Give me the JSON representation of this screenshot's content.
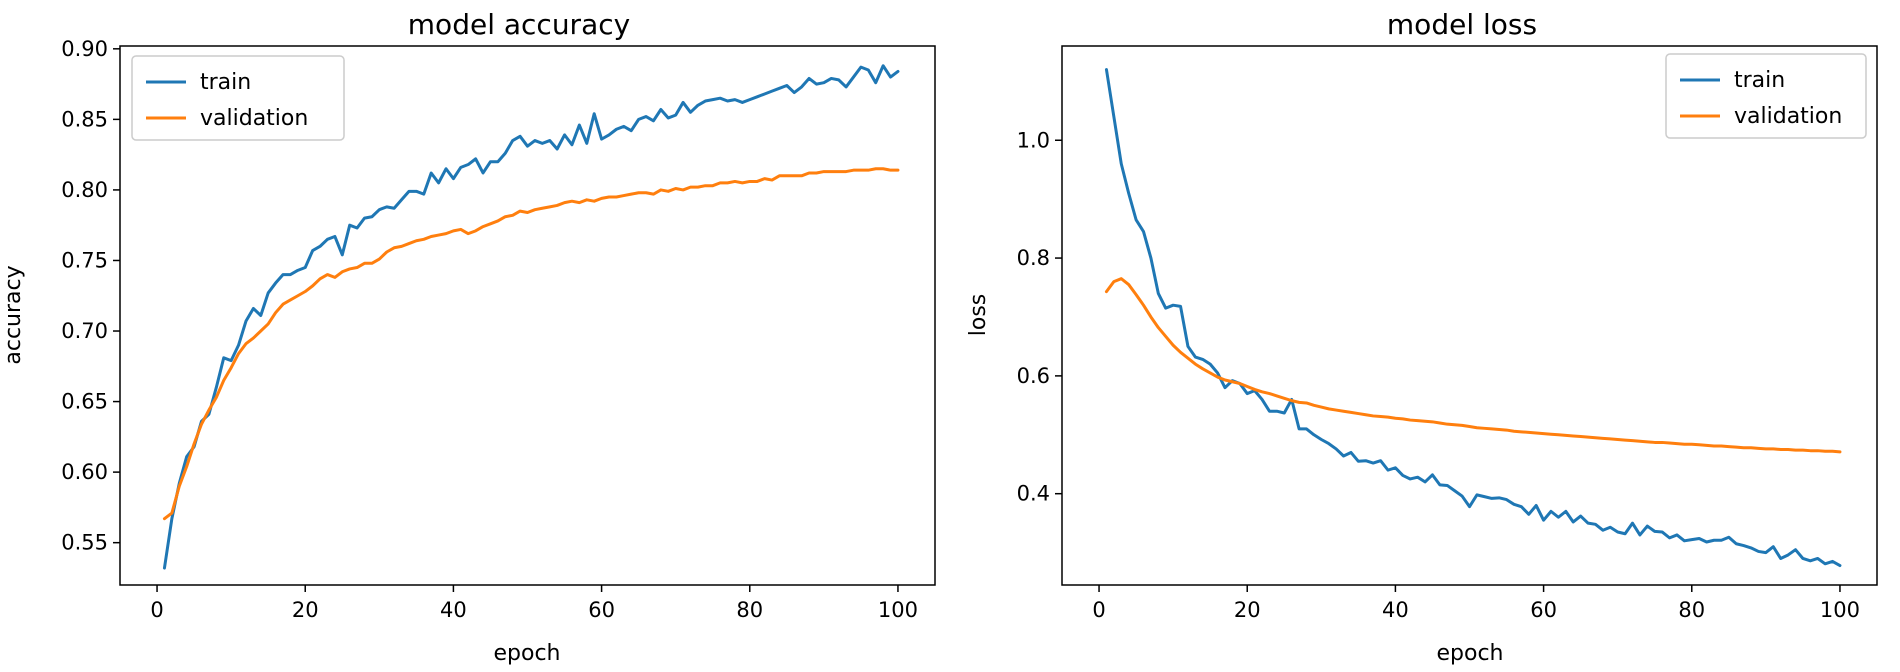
{
  "chart_data": [
    {
      "type": "line",
      "title": "model accuracy",
      "xlabel": "epoch",
      "ylabel": "accuracy",
      "xlim": [
        -5,
        105
      ],
      "ylim": [
        0.52,
        0.902
      ],
      "xticks": [
        0,
        20,
        40,
        60,
        80,
        100
      ],
      "xtick_labels": [
        "0",
        "20",
        "40",
        "60",
        "80",
        "100"
      ],
      "yticks": [
        0.55,
        0.6,
        0.65,
        0.7,
        0.75,
        0.8,
        0.85,
        0.9
      ],
      "ytick_labels": [
        "0.55",
        "0.60",
        "0.65",
        "0.70",
        "0.75",
        "0.80",
        "0.85",
        "0.90"
      ],
      "grid": false,
      "legend_position": "top-left",
      "x": [
        1,
        2,
        3,
        4,
        5,
        6,
        7,
        8,
        9,
        10,
        11,
        12,
        13,
        14,
        15,
        16,
        17,
        18,
        19,
        20,
        21,
        22,
        23,
        24,
        25,
        26,
        27,
        28,
        29,
        30,
        31,
        32,
        33,
        34,
        35,
        36,
        37,
        38,
        39,
        40,
        41,
        42,
        43,
        44,
        45,
        46,
        47,
        48,
        49,
        50,
        51,
        52,
        53,
        54,
        55,
        56,
        57,
        58,
        59,
        60,
        61,
        62,
        63,
        64,
        65,
        66,
        67,
        68,
        69,
        70,
        71,
        72,
        73,
        74,
        75,
        76,
        77,
        78,
        79,
        80,
        81,
        82,
        83,
        84,
        85,
        86,
        87,
        88,
        89,
        90,
        91,
        92,
        93,
        94,
        95,
        96,
        97,
        98,
        99,
        100
      ],
      "series": [
        {
          "name": "train",
          "color": "#1f77b4",
          "values": [
            0.532,
            0.567,
            0.592,
            0.611,
            0.618,
            0.636,
            0.641,
            0.66,
            0.681,
            0.679,
            0.69,
            0.707,
            0.716,
            0.711,
            0.727,
            0.734,
            0.74,
            0.74,
            0.743,
            0.745,
            0.757,
            0.76,
            0.765,
            0.767,
            0.754,
            0.775,
            0.773,
            0.78,
            0.781,
            0.786,
            0.788,
            0.787,
            0.793,
            0.799,
            0.799,
            0.797,
            0.812,
            0.805,
            0.815,
            0.808,
            0.816,
            0.818,
            0.822,
            0.812,
            0.82,
            0.82,
            0.826,
            0.835,
            0.838,
            0.831,
            0.835,
            0.833,
            0.835,
            0.829,
            0.839,
            0.832,
            0.846,
            0.833,
            0.854,
            0.836,
            0.839,
            0.843,
            0.845,
            0.842,
            0.85,
            0.852,
            0.849,
            0.857,
            0.851,
            0.853,
            0.862,
            0.855,
            0.86,
            0.863,
            0.864,
            0.865,
            0.863,
            0.864,
            0.862,
            0.864,
            0.866,
            0.868,
            0.87,
            0.872,
            0.874,
            0.869,
            0.873,
            0.879,
            0.875,
            0.876,
            0.879,
            0.878,
            0.873,
            0.88,
            0.887,
            0.885,
            0.876,
            0.888,
            0.88,
            0.884
          ]
        },
        {
          "name": "validation",
          "color": "#ff7f0e",
          "values": [
            0.567,
            0.571,
            0.59,
            0.604,
            0.62,
            0.634,
            0.644,
            0.653,
            0.665,
            0.674,
            0.684,
            0.691,
            0.695,
            0.7,
            0.705,
            0.713,
            0.719,
            0.722,
            0.725,
            0.728,
            0.732,
            0.737,
            0.74,
            0.738,
            0.742,
            0.744,
            0.745,
            0.748,
            0.748,
            0.751,
            0.756,
            0.759,
            0.76,
            0.762,
            0.764,
            0.765,
            0.767,
            0.768,
            0.769,
            0.771,
            0.772,
            0.769,
            0.771,
            0.774,
            0.776,
            0.778,
            0.781,
            0.782,
            0.785,
            0.784,
            0.786,
            0.787,
            0.788,
            0.789,
            0.791,
            0.792,
            0.791,
            0.793,
            0.792,
            0.794,
            0.795,
            0.795,
            0.796,
            0.797,
            0.798,
            0.798,
            0.797,
            0.8,
            0.799,
            0.801,
            0.8,
            0.802,
            0.802,
            0.803,
            0.803,
            0.805,
            0.805,
            0.806,
            0.805,
            0.806,
            0.806,
            0.808,
            0.807,
            0.81,
            0.81,
            0.81,
            0.81,
            0.812,
            0.812,
            0.813,
            0.813,
            0.813,
            0.813,
            0.814,
            0.814,
            0.814,
            0.815,
            0.815,
            0.814,
            0.814
          ]
        }
      ]
    },
    {
      "type": "line",
      "title": "model loss",
      "xlabel": "epoch",
      "ylabel": "loss",
      "xlim": [
        -5,
        105
      ],
      "ylim": [
        0.245,
        1.16
      ],
      "xticks": [
        0,
        20,
        40,
        60,
        80,
        100
      ],
      "xtick_labels": [
        "0",
        "20",
        "40",
        "60",
        "80",
        "100"
      ],
      "yticks": [
        0.4,
        0.6,
        0.8,
        1.0
      ],
      "ytick_labels": [
        "0.4",
        "0.6",
        "0.8",
        "1.0"
      ],
      "grid": false,
      "legend_position": "top-right",
      "x": [
        1,
        2,
        3,
        4,
        5,
        6,
        7,
        8,
        9,
        10,
        11,
        12,
        13,
        14,
        15,
        16,
        17,
        18,
        19,
        20,
        21,
        22,
        23,
        24,
        25,
        26,
        27,
        28,
        29,
        30,
        31,
        32,
        33,
        34,
        35,
        36,
        37,
        38,
        39,
        40,
        41,
        42,
        43,
        44,
        45,
        46,
        47,
        48,
        49,
        50,
        51,
        52,
        53,
        54,
        55,
        56,
        57,
        58,
        59,
        60,
        61,
        62,
        63,
        64,
        65,
        66,
        67,
        68,
        69,
        70,
        71,
        72,
        73,
        74,
        75,
        76,
        77,
        78,
        79,
        80,
        81,
        82,
        83,
        84,
        85,
        86,
        87,
        88,
        89,
        90,
        91,
        92,
        93,
        94,
        95,
        96,
        97,
        98,
        99,
        100
      ],
      "series": [
        {
          "name": "train",
          "color": "#1f77b4",
          "values": [
            1.12,
            1.04,
            0.96,
            0.91,
            0.865,
            0.845,
            0.8,
            0.74,
            0.715,
            0.72,
            0.718,
            0.65,
            0.632,
            0.628,
            0.62,
            0.605,
            0.58,
            0.592,
            0.587,
            0.57,
            0.575,
            0.56,
            0.54,
            0.54,
            0.537,
            0.56,
            0.51,
            0.51,
            0.5,
            0.492,
            0.485,
            0.476,
            0.464,
            0.47,
            0.455,
            0.456,
            0.452,
            0.456,
            0.44,
            0.444,
            0.431,
            0.425,
            0.428,
            0.42,
            0.432,
            0.415,
            0.414,
            0.405,
            0.396,
            0.378,
            0.398,
            0.395,
            0.392,
            0.393,
            0.39,
            0.382,
            0.378,
            0.365,
            0.38,
            0.355,
            0.37,
            0.36,
            0.37,
            0.352,
            0.362,
            0.35,
            0.348,
            0.338,
            0.343,
            0.335,
            0.332,
            0.35,
            0.33,
            0.345,
            0.336,
            0.335,
            0.325,
            0.33,
            0.32,
            0.322,
            0.324,
            0.318,
            0.321,
            0.321,
            0.326,
            0.315,
            0.312,
            0.308,
            0.302,
            0.3,
            0.31,
            0.29,
            0.296,
            0.305,
            0.29,
            0.286,
            0.29,
            0.281,
            0.285,
            0.278
          ]
        },
        {
          "name": "validation",
          "color": "#ff7f0e",
          "values": [
            0.743,
            0.76,
            0.765,
            0.755,
            0.738,
            0.72,
            0.7,
            0.682,
            0.667,
            0.652,
            0.64,
            0.63,
            0.62,
            0.612,
            0.605,
            0.598,
            0.593,
            0.59,
            0.587,
            0.582,
            0.577,
            0.573,
            0.57,
            0.566,
            0.562,
            0.558,
            0.555,
            0.554,
            0.55,
            0.547,
            0.544,
            0.542,
            0.54,
            0.538,
            0.536,
            0.534,
            0.532,
            0.531,
            0.53,
            0.528,
            0.527,
            0.525,
            0.524,
            0.523,
            0.522,
            0.52,
            0.518,
            0.517,
            0.516,
            0.514,
            0.512,
            0.511,
            0.51,
            0.509,
            0.508,
            0.506,
            0.505,
            0.504,
            0.503,
            0.502,
            0.501,
            0.5,
            0.499,
            0.498,
            0.497,
            0.496,
            0.495,
            0.494,
            0.493,
            0.492,
            0.491,
            0.49,
            0.489,
            0.488,
            0.487,
            0.487,
            0.486,
            0.485,
            0.484,
            0.484,
            0.483,
            0.482,
            0.481,
            0.481,
            0.48,
            0.479,
            0.478,
            0.478,
            0.477,
            0.476,
            0.476,
            0.475,
            0.475,
            0.474,
            0.474,
            0.473,
            0.473,
            0.472,
            0.472,
            0.471
          ]
        }
      ]
    }
  ]
}
